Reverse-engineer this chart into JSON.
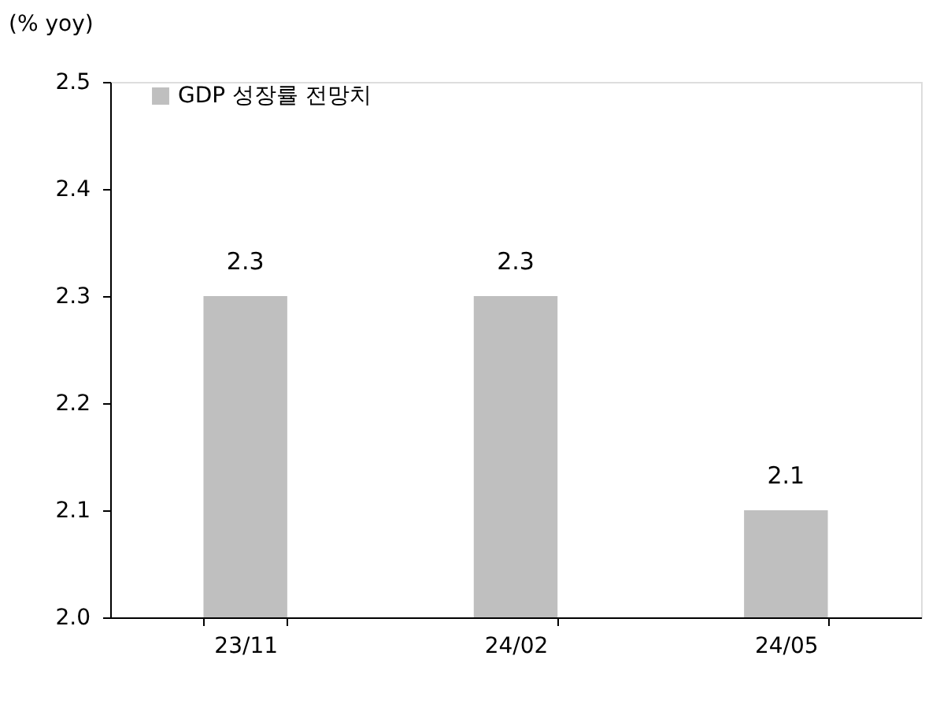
{
  "chart_data": {
    "type": "bar",
    "ylabel": "(% yoy)",
    "categories": [
      "23/11",
      "24/02",
      "24/05"
    ],
    "series": [
      {
        "name": "GDP 성장률 전망치",
        "color": "#bfbfbf",
        "values": [
          2.3,
          2.3,
          2.1
        ]
      }
    ],
    "ylim": [
      2.0,
      2.5
    ],
    "yticks": [
      {
        "value": 2.0,
        "label": "2.0"
      },
      2.1,
      2.2,
      2.3,
      2.4,
      2.5
    ],
    "data_labels": true,
    "grid": false,
    "legend": "top left"
  }
}
